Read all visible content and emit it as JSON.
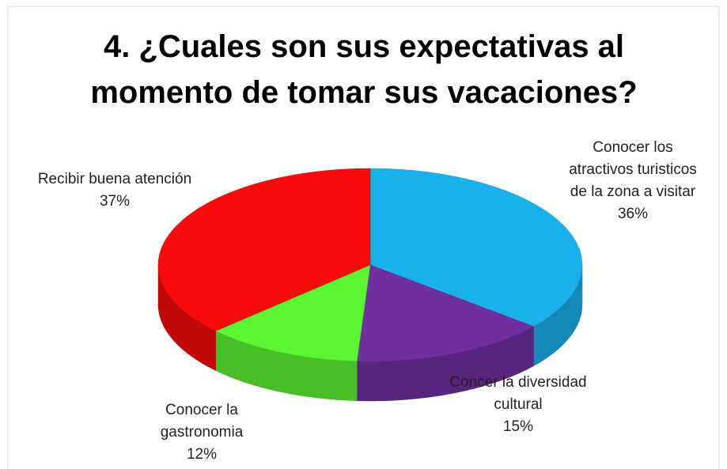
{
  "chart_data": {
    "type": "pie3d",
    "title": "4. ¿Cuales son sus expectativas al momento de tomar sus vacaciones?",
    "categories": [
      "Conocer los atractivos turisticos de la zona a visitar",
      "Concer la diversidad cultural",
      "Conocer la gastronomia",
      "Recibir buena atención"
    ],
    "values": [
      36,
      15,
      12,
      37
    ],
    "value_labels": [
      "36%",
      "15%",
      "12%",
      "37%"
    ],
    "colors": [
      "#1ab0ec",
      "#7030a0",
      "#5cf532",
      "#fa0a0a"
    ]
  }
}
